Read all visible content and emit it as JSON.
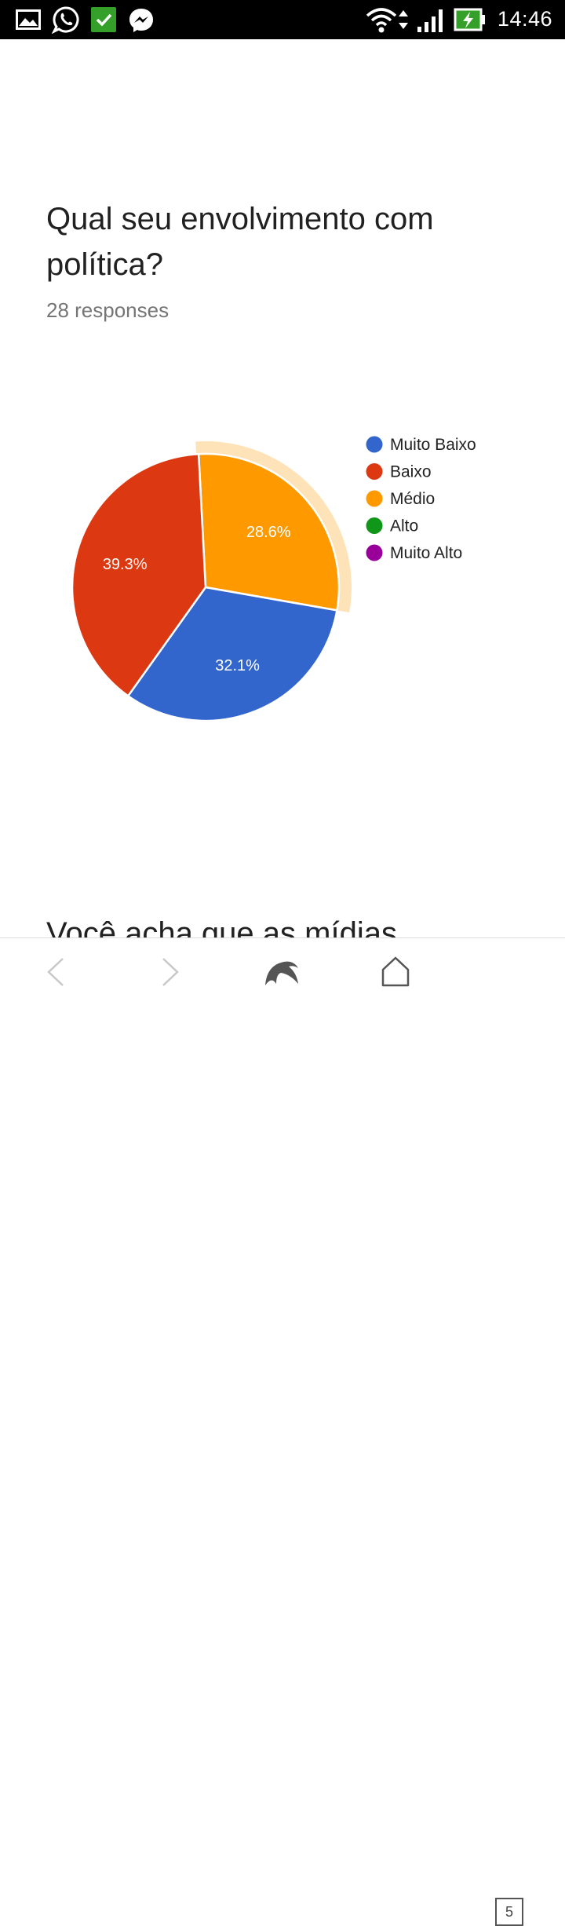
{
  "status_bar": {
    "time": "14:46",
    "left_icons": [
      "gallery-icon",
      "whatsapp-icon",
      "checkmark-app-icon",
      "messenger-icon"
    ],
    "right_icons": [
      "wifi-icon",
      "signal-icon",
      "battery-charging-icon"
    ]
  },
  "question": {
    "title": "Qual seu envolvimento com política?",
    "responses": "28 responses"
  },
  "next_question": {
    "title": "Você acha que as mídias"
  },
  "chart_data": {
    "type": "pie",
    "categories": [
      "Muito Baixo",
      "Baixo",
      "Médio",
      "Alto",
      "Muito Alto"
    ],
    "values": [
      32.1,
      39.3,
      28.6,
      0,
      0
    ],
    "labels": [
      "32.1%",
      "39.3%",
      "28.6%",
      "",
      ""
    ],
    "colors": [
      "#3366cc",
      "#dc3912",
      "#ff9900",
      "#109618",
      "#990099"
    ],
    "highlighted": "Médio",
    "legend_position": "right"
  },
  "bottom_nav": {
    "tab_count": "5",
    "buttons": [
      "back-icon",
      "forward-icon",
      "dolphin-icon",
      "home-icon",
      "tabs-icon"
    ]
  }
}
